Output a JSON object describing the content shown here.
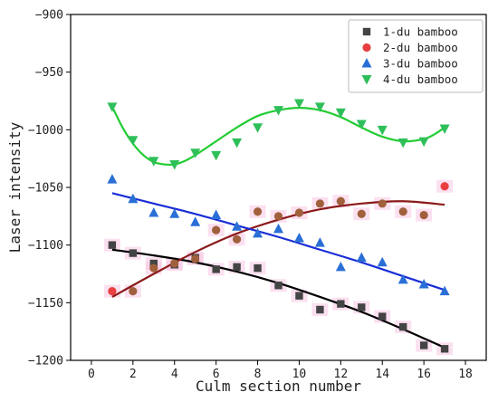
{
  "chart_data": {
    "type": "scatter",
    "xlabel": "Culm section number",
    "ylabel": "Laser intensity",
    "xlim": [
      -1,
      19
    ],
    "ylim": [
      -1200,
      -900
    ],
    "x_ticks": [
      0,
      2,
      4,
      6,
      8,
      10,
      12,
      14,
      16,
      18
    ],
    "y_ticks": [
      -1200,
      -1150,
      -1100,
      -1050,
      -1000,
      -950,
      -900
    ],
    "grid": false,
    "legend_position": "top-right",
    "series": [
      {
        "name": "1-du bamboo",
        "marker": "square",
        "color": "#444444",
        "fit_color": "#000000",
        "x": [
          1,
          2,
          3,
          4,
          5,
          6,
          7,
          8,
          9,
          10,
          11,
          12,
          13,
          14,
          15,
          16,
          17
        ],
        "y": [
          -1100,
          -1107,
          -1116,
          -1117,
          -1111,
          -1121,
          -1119,
          -1120,
          -1135,
          -1144,
          -1156,
          -1151,
          -1154,
          -1162,
          -1171,
          -1187,
          -1190
        ],
        "fit_x": [
          1,
          3,
          5,
          7,
          9,
          11,
          13,
          15,
          17
        ],
        "fit_y": [
          -1104,
          -1109,
          -1115,
          -1123,
          -1133,
          -1145,
          -1158,
          -1173,
          -1189
        ]
      },
      {
        "name": "2-du bamboo",
        "marker": "circle",
        "color": "#e84040",
        "fit_color": "#8b1a1a",
        "x": [
          1,
          2,
          3,
          4,
          5,
          6,
          7,
          8,
          9,
          10,
          11,
          12,
          13,
          14,
          15,
          16,
          17
        ],
        "y": [
          -1140,
          -1140,
          -1120,
          -1116,
          -1112,
          -1087,
          -1095,
          -1071,
          -1075,
          -1072,
          -1064,
          -1062,
          -1073,
          -1064,
          -1071,
          -1074,
          -1049
        ],
        "fit_x": [
          1,
          3,
          5,
          7,
          9,
          11,
          13,
          15,
          17
        ],
        "fit_y": [
          -1145,
          -1125,
          -1106,
          -1090,
          -1078,
          -1069,
          -1064,
          -1062,
          -1065
        ]
      },
      {
        "name": "3-du bamboo",
        "marker": "triangle-up",
        "color": "#2a6fd6",
        "fit_color": "#1a2ed6",
        "x": [
          1,
          2,
          3,
          4,
          5,
          6,
          7,
          8,
          9,
          10,
          11,
          12,
          13,
          14,
          15,
          16,
          17
        ],
        "y": [
          -1043,
          -1060,
          -1072,
          -1073,
          -1080,
          -1074,
          -1084,
          -1090,
          -1086,
          -1094,
          -1098,
          -1119,
          -1111,
          -1115,
          -1130,
          -1134,
          -1140
        ],
        "fit_x": [
          1,
          3,
          5,
          7,
          9,
          11,
          13,
          15,
          17
        ],
        "fit_y": [
          -1055,
          -1064,
          -1073,
          -1083,
          -1093,
          -1104,
          -1115,
          -1127,
          -1139
        ]
      },
      {
        "name": "4-du bamboo",
        "marker": "triangle-down",
        "color": "#2fbf5a",
        "fit_color": "#22cc33",
        "x": [
          1,
          2,
          3,
          4,
          5,
          6,
          7,
          8,
          9,
          10,
          11,
          12,
          13,
          14,
          15,
          16,
          17
        ],
        "y": [
          -980,
          -1009,
          -1027,
          -1030,
          -1020,
          -1022,
          -1011,
          -998,
          -983,
          -977,
          -980,
          -985,
          -995,
          -1000,
          -1011,
          -1010,
          -999
        ],
        "fit_x": [
          1,
          1.5,
          2,
          2.5,
          3,
          3.5,
          4,
          4.5,
          5,
          6,
          7,
          8,
          9,
          10,
          11,
          12,
          13,
          14,
          15,
          16,
          16.5,
          17
        ],
        "fit_y": [
          -980,
          -998,
          -1012,
          -1022,
          -1028,
          -1030,
          -1030,
          -1027,
          -1022,
          -1010,
          -998,
          -988,
          -983,
          -981,
          -983,
          -989,
          -998,
          -1006,
          -1010,
          -1008,
          -1004,
          -998
        ]
      }
    ]
  }
}
